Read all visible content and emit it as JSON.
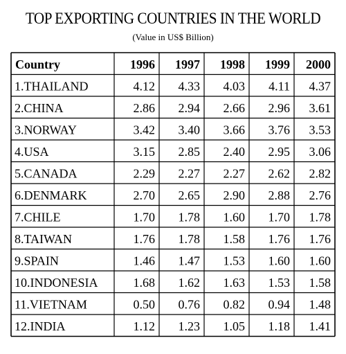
{
  "title": "TOP EXPORTING COUNTRIES IN THE WORLD",
  "subtitle": "(Value in US$ Billion)",
  "chart_data": {
    "type": "table",
    "title": "TOP EXPORTING COUNTRIES IN THE WORLD",
    "subtitle": "(Value in US$ Billion)",
    "columns": [
      "Country",
      "1996",
      "1997",
      "1998",
      "1999",
      "2000"
    ],
    "rows": [
      [
        "1.THAILAND",
        "4.12",
        "4.33",
        "4.03",
        "4.11",
        "4.37"
      ],
      [
        "2.CHINA",
        "2.86",
        "2.94",
        "2.66",
        "2.96",
        "3.61"
      ],
      [
        "3.NORWAY",
        "3.42",
        "3.40",
        "3.66",
        "3.76",
        "3.53"
      ],
      [
        "4.USA",
        "3.15",
        "2.85",
        "2.40",
        "2.95",
        "3.06"
      ],
      [
        "5.CANADA",
        "2.29",
        "2.27",
        "2.27",
        "2.62",
        "2.82"
      ],
      [
        "6.DENMARK",
        "2.70",
        "2.65",
        "2.90",
        "2.88",
        "2.76"
      ],
      [
        "7.CHILE",
        "1.70",
        "1.78",
        "1.60",
        "1.70",
        "1.78"
      ],
      [
        "8.TAIWAN",
        "1.76",
        "1.78",
        "1.58",
        "1.76",
        "1.76"
      ],
      [
        "9.SPAIN",
        "1.46",
        "1.47",
        "1.53",
        "1.60",
        "1.60"
      ],
      [
        "10.INDONESIA",
        "1.68",
        "1.62",
        "1.63",
        "1.53",
        "1.58"
      ],
      [
        "11.VIETNAM",
        "0.50",
        "0.76",
        "0.82",
        "0.94",
        "1.48"
      ],
      [
        "12.INDIA",
        "1.12",
        "1.23",
        "1.05",
        "1.18",
        "1.41"
      ]
    ]
  }
}
